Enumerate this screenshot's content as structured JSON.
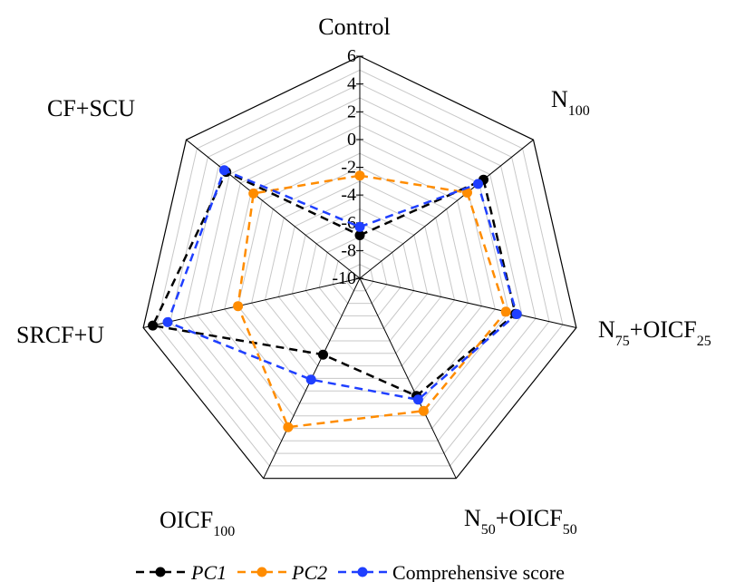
{
  "chart_data": {
    "type": "radar",
    "title": "",
    "axes": [
      "Control",
      "N100",
      "N75+OICF25",
      "N50+OICF50",
      "OICF100",
      "SRCF+U",
      "CF+SCU"
    ],
    "axis_labels": [
      {
        "base": "Control",
        "sub": "",
        "tail": ""
      },
      {
        "base": "N",
        "sub": "100",
        "tail": ""
      },
      {
        "base": "N",
        "sub": "75",
        "tail": "+OICF",
        "sub2": "25"
      },
      {
        "base": "N",
        "sub": "50",
        "tail": "+OICF",
        "sub2": "50"
      },
      {
        "base": "OICF",
        "sub": "100",
        "tail": ""
      },
      {
        "base": "SRCF+U",
        "sub": "",
        "tail": ""
      },
      {
        "base": "CF+SCU",
        "sub": "",
        "tail": ""
      }
    ],
    "rlim": [
      -10,
      6
    ],
    "ticks": [
      -10,
      -8,
      -6,
      -4,
      -2,
      0,
      2,
      4,
      6
    ],
    "tick_labels": [
      "-10",
      "-8",
      "-6",
      "-4",
      "-2",
      "0",
      "2",
      "4",
      "6"
    ],
    "grid": true,
    "legend_position": "bottom",
    "series": [
      {
        "name": "PC1",
        "color": "#000000",
        "italic": true,
        "values": [
          -6.9,
          1.4,
          1.5,
          -0.6,
          -3.9,
          5.3,
          2.3
        ]
      },
      {
        "name": "PC2",
        "color": "#ff8c00",
        "italic": true,
        "values": [
          -2.6,
          -0.1,
          0.8,
          0.6,
          1.9,
          -1.0,
          -0.2
        ]
      },
      {
        "name": "Comprehensive score",
        "color": "#1f3fff",
        "italic": false,
        "values": [
          -6.3,
          0.9,
          1.6,
          -0.3,
          -1.9,
          4.2,
          2.5
        ]
      }
    ]
  }
}
